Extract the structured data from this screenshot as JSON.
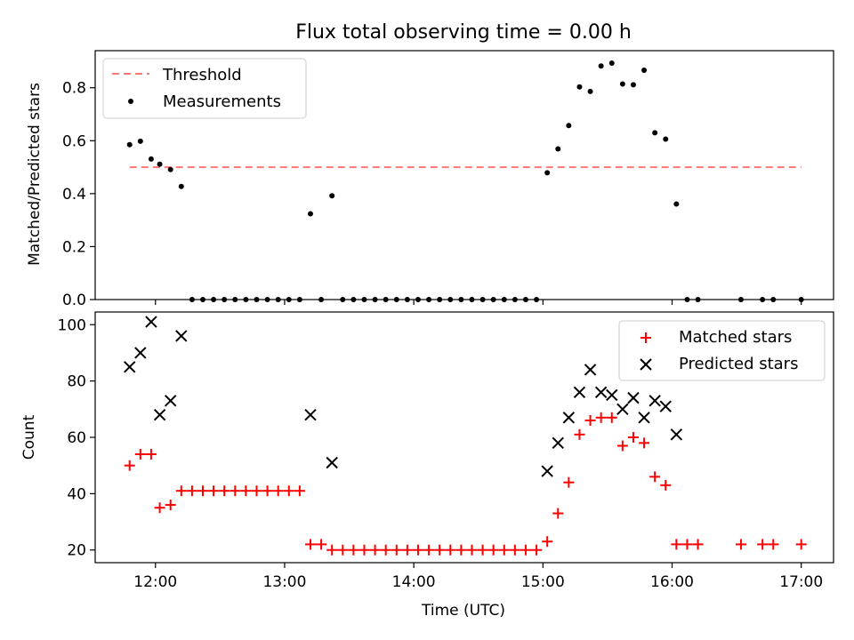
{
  "chart_data": [
    {
      "type": "scatter",
      "title": "Flux total observing time = 0.00 h",
      "xlabel": "",
      "ylabel": "Matched/Predicted stars",
      "xlim": [
        "11:32",
        "17:15"
      ],
      "ylim": [
        0,
        0.94
      ],
      "y_ticks": [
        0.0,
        0.2,
        0.4,
        0.6,
        0.8
      ],
      "y_tick_labels": [
        "0.0",
        "0.2",
        "0.4",
        "0.6",
        "0.8"
      ],
      "x_ticks": [
        "12:00",
        "13:00",
        "14:00",
        "15:00",
        "16:00",
        "17:00"
      ],
      "threshold": {
        "name": "Threshold",
        "value": 0.5,
        "x_range": [
          "11:48",
          "17:00"
        ],
        "color": "#ff7777",
        "style": "dashed"
      },
      "series": [
        {
          "name": "Measurements",
          "color": "#000000",
          "marker": "dot",
          "points": [
            [
              "11:48",
              0.585
            ],
            [
              "11:53",
              0.598
            ],
            [
              "11:58",
              0.531
            ],
            [
              "12:02",
              0.511
            ],
            [
              "12:07",
              0.491
            ],
            [
              "12:12",
              0.427
            ],
            [
              "12:17",
              0.0
            ],
            [
              "12:22",
              0.0
            ],
            [
              "12:27",
              0.0
            ],
            [
              "12:32",
              0.0
            ],
            [
              "12:37",
              0.0
            ],
            [
              "12:42",
              0.0
            ],
            [
              "12:47",
              0.0
            ],
            [
              "12:52",
              0.0
            ],
            [
              "12:57",
              0.0
            ],
            [
              "13:02",
              0.0
            ],
            [
              "13:07",
              0.0
            ],
            [
              "13:12",
              0.324
            ],
            [
              "13:17",
              0.0
            ],
            [
              "13:22",
              0.392
            ],
            [
              "13:27",
              0.0
            ],
            [
              "13:32",
              0.0
            ],
            [
              "13:37",
              0.0
            ],
            [
              "13:42",
              0.0
            ],
            [
              "13:47",
              0.0
            ],
            [
              "13:52",
              0.0
            ],
            [
              "13:57",
              0.0
            ],
            [
              "14:02",
              0.0
            ],
            [
              "14:07",
              0.0
            ],
            [
              "14:12",
              0.0
            ],
            [
              "14:17",
              0.0
            ],
            [
              "14:22",
              0.0
            ],
            [
              "14:27",
              0.0
            ],
            [
              "14:32",
              0.0
            ],
            [
              "14:37",
              0.0
            ],
            [
              "14:42",
              0.0
            ],
            [
              "14:47",
              0.0
            ],
            [
              "14:52",
              0.0
            ],
            [
              "14:57",
              0.0
            ],
            [
              "15:02",
              0.479
            ],
            [
              "15:07",
              0.569
            ],
            [
              "15:12",
              0.657
            ],
            [
              "15:17",
              0.803
            ],
            [
              "15:22",
              0.786
            ],
            [
              "15:27",
              0.882
            ],
            [
              "15:32",
              0.893
            ],
            [
              "15:37",
              0.814
            ],
            [
              "15:42",
              0.811
            ],
            [
              "15:47",
              0.866
            ],
            [
              "15:52",
              0.63
            ],
            [
              "15:57",
              0.606
            ],
            [
              "16:02",
              0.361
            ],
            [
              "16:07",
              0.0
            ],
            [
              "16:12",
              0.0
            ],
            [
              "16:32",
              0.0
            ],
            [
              "16:42",
              0.0
            ],
            [
              "16:47",
              0.0
            ],
            [
              "17:00",
              0.0
            ]
          ]
        }
      ],
      "legend": {
        "position": "top-left",
        "entries": [
          "Threshold",
          "Measurements"
        ]
      },
      "grid": false
    },
    {
      "type": "scatter",
      "title": "",
      "xlabel": "Time (UTC)",
      "ylabel": "Count",
      "xlim": [
        "11:32",
        "17:15"
      ],
      "ylim": [
        15.5,
        104.5
      ],
      "y_ticks": [
        20,
        40,
        60,
        80,
        100
      ],
      "y_tick_labels": [
        "20",
        "40",
        "60",
        "80",
        "100"
      ],
      "x_ticks": [
        "12:00",
        "13:00",
        "14:00",
        "15:00",
        "16:00",
        "17:00"
      ],
      "x_tick_labels": [
        "12:00",
        "13:00",
        "14:00",
        "15:00",
        "16:00",
        "17:00"
      ],
      "series": [
        {
          "name": "Matched stars",
          "color": "#ff0000",
          "marker": "plus",
          "points": [
            [
              "11:48",
              50
            ],
            [
              "11:53",
              54
            ],
            [
              "11:58",
              54
            ],
            [
              "12:02",
              35
            ],
            [
              "12:07",
              36
            ],
            [
              "12:12",
              41
            ],
            [
              "12:17",
              41
            ],
            [
              "12:22",
              41
            ],
            [
              "12:27",
              41
            ],
            [
              "12:32",
              41
            ],
            [
              "12:37",
              41
            ],
            [
              "12:42",
              41
            ],
            [
              "12:47",
              41
            ],
            [
              "12:52",
              41
            ],
            [
              "12:57",
              41
            ],
            [
              "13:02",
              41
            ],
            [
              "13:07",
              41
            ],
            [
              "13:12",
              22
            ],
            [
              "13:17",
              22
            ],
            [
              "13:22",
              20
            ],
            [
              "13:27",
              20
            ],
            [
              "13:32",
              20
            ],
            [
              "13:37",
              20
            ],
            [
              "13:42",
              20
            ],
            [
              "13:47",
              20
            ],
            [
              "13:52",
              20
            ],
            [
              "13:57",
              20
            ],
            [
              "14:02",
              20
            ],
            [
              "14:07",
              20
            ],
            [
              "14:12",
              20
            ],
            [
              "14:17",
              20
            ],
            [
              "14:22",
              20
            ],
            [
              "14:27",
              20
            ],
            [
              "14:32",
              20
            ],
            [
              "14:37",
              20
            ],
            [
              "14:42",
              20
            ],
            [
              "14:47",
              20
            ],
            [
              "14:52",
              20
            ],
            [
              "14:57",
              20
            ],
            [
              "15:02",
              23
            ],
            [
              "15:07",
              33
            ],
            [
              "15:12",
              44
            ],
            [
              "15:17",
              61
            ],
            [
              "15:22",
              66
            ],
            [
              "15:27",
              67
            ],
            [
              "15:32",
              67
            ],
            [
              "15:37",
              57
            ],
            [
              "15:42",
              60
            ],
            [
              "15:47",
              58
            ],
            [
              "15:52",
              46
            ],
            [
              "15:57",
              43
            ],
            [
              "16:02",
              22
            ],
            [
              "16:07",
              22
            ],
            [
              "16:12",
              22
            ],
            [
              "16:32",
              22
            ],
            [
              "16:42",
              22
            ],
            [
              "16:47",
              22
            ],
            [
              "17:00",
              22
            ]
          ]
        },
        {
          "name": "Predicted stars",
          "color": "#000000",
          "marker": "x",
          "points": [
            [
              "11:48",
              85
            ],
            [
              "11:53",
              90
            ],
            [
              "11:58",
              101
            ],
            [
              "12:02",
              68
            ],
            [
              "12:07",
              73
            ],
            [
              "12:12",
              96
            ],
            [
              "13:12",
              68
            ],
            [
              "13:22",
              51
            ],
            [
              "15:02",
              48
            ],
            [
              "15:07",
              58
            ],
            [
              "15:12",
              67
            ],
            [
              "15:17",
              76
            ],
            [
              "15:22",
              84
            ],
            [
              "15:27",
              76
            ],
            [
              "15:32",
              75
            ],
            [
              "15:37",
              70
            ],
            [
              "15:42",
              74
            ],
            [
              "15:47",
              67
            ],
            [
              "15:52",
              73
            ],
            [
              "15:57",
              71
            ],
            [
              "16:02",
              61
            ]
          ]
        }
      ],
      "legend": {
        "position": "top-right",
        "entries": [
          "Matched stars",
          "Predicted stars"
        ]
      },
      "grid": false
    }
  ]
}
